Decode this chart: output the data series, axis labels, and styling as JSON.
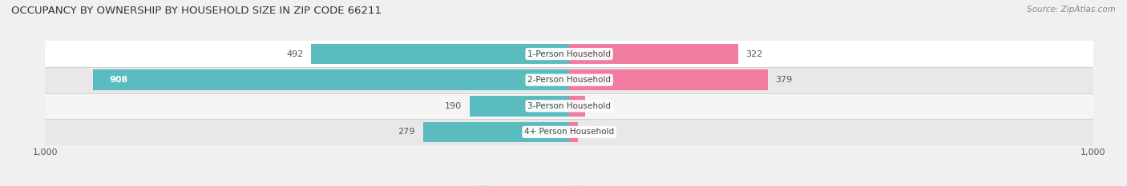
{
  "title": "OCCUPANCY BY OWNERSHIP BY HOUSEHOLD SIZE IN ZIP CODE 66211",
  "source": "Source: ZipAtlas.com",
  "categories": [
    "1-Person Household",
    "2-Person Household",
    "3-Person Household",
    "4+ Person Household"
  ],
  "owner_values": [
    492,
    908,
    190,
    279
  ],
  "renter_values": [
    322,
    379,
    30,
    17
  ],
  "owner_color": "#5bbcbf",
  "renter_color": "#f07ca0",
  "axis_max": 1000,
  "bg_color": "#f0f0f0",
  "row_colors": [
    "#ffffff",
    "#e8e8e8",
    "#f5f5f5",
    "#e8e8e8"
  ],
  "bar_height": 0.78,
  "label_fontsize": 8.0,
  "title_fontsize": 9.5,
  "source_fontsize": 7.5
}
